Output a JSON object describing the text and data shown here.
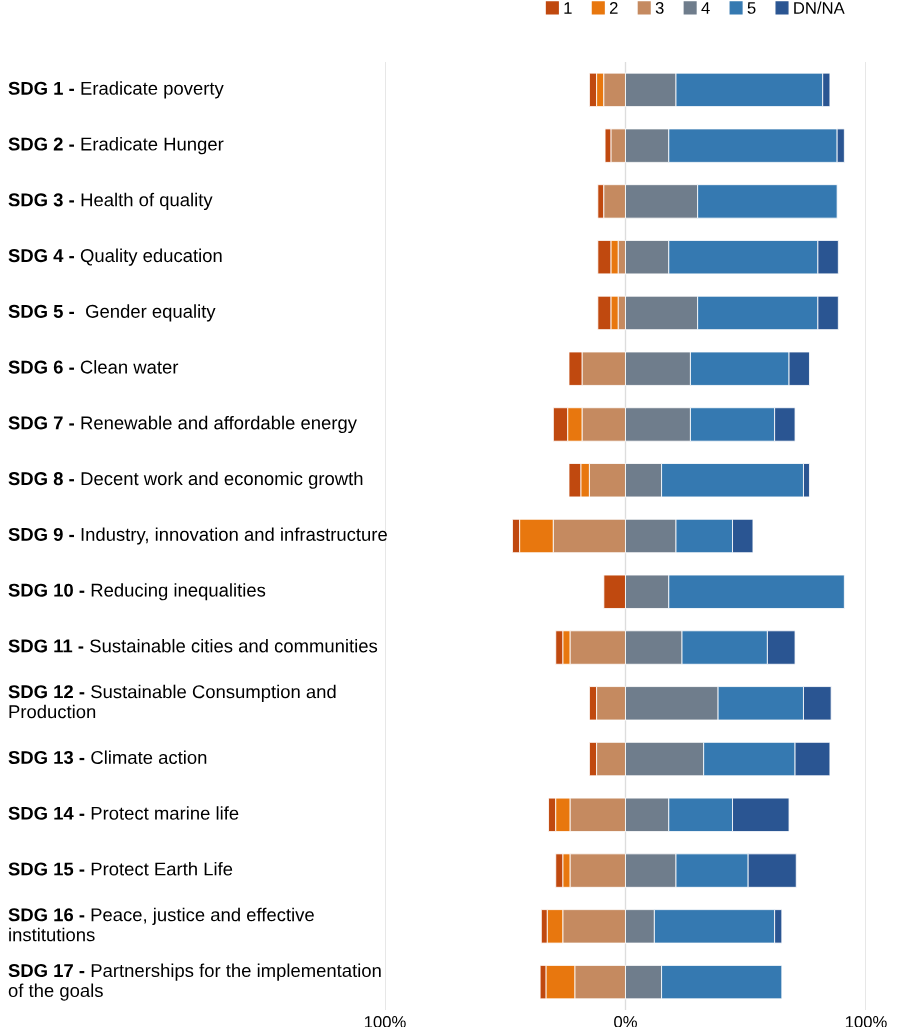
{
  "chart_data": {
    "type": "bar",
    "orientation": "horizontal",
    "stacked": true,
    "categories": [
      "SDG 1 - Eradicate poverty",
      "SDG 2 - Eradicate Hunger",
      "SDG 3 - Health of quality",
      "SDG 4 - Quality education",
      "SDG 5 -  Gender equality",
      "SDG 6 - Clean water",
      "SDG 7 - Renewable and affordable energy",
      "SDG 8 - Decent work and economic growth",
      "SDG 9 - Industry, innovation and infrastructure",
      "SDG 10 - Reducing inequalities",
      "SDG 11 - Sustainable cities and communities",
      "SDG 12 - Sustainable Consumption and Production",
      "SDG 13 - Climate action",
      "SDG 14 - Protect marine life",
      "SDG 15 - Protect Earth Life",
      "SDG 16 - Peace, justice and effective institutions",
      "SDG 17 - Partnerships for the implementation of the goals"
    ],
    "series": [
      {
        "name": "1",
        "color": "#c0490f",
        "values": [
          -3,
          -2.5,
          -2.5,
          -5.5,
          -5.5,
          -5.5,
          -6,
          -5,
          -3,
          -9,
          -3,
          -3,
          -3,
          -3,
          -3,
          -2.5,
          -2.5
        ]
      },
      {
        "name": "2",
        "color": "#e8770e",
        "values": [
          -3,
          0,
          0,
          -3,
          -3,
          0,
          -6,
          -3.5,
          -14,
          0,
          -3,
          0,
          0,
          -6,
          -3,
          -6.5,
          -12
        ]
      },
      {
        "name": "3",
        "color": "#c58a60",
        "values": [
          -9,
          -6,
          -9,
          -3,
          -3,
          -18,
          -18,
          -15,
          -30,
          0,
          -23,
          -12,
          -12,
          -23,
          -23,
          -26,
          -21
        ]
      },
      {
        "name": "4",
        "color": "#6f7d8c",
        "values": [
          21,
          18,
          30,
          18,
          30,
          27,
          27,
          15,
          21,
          18,
          23.5,
          38.5,
          32.5,
          18,
          21,
          12,
          15
        ]
      },
      {
        "name": "5",
        "color": "#3579b1",
        "values": [
          61,
          70,
          58,
          62,
          50,
          41,
          35,
          59,
          23.5,
          73,
          35.5,
          35.5,
          38,
          26.5,
          30,
          50,
          50
        ]
      },
      {
        "name": "DN/NA",
        "color": "#2a5592",
        "values": [
          3,
          3,
          0,
          8.5,
          8.5,
          8.5,
          8.5,
          2.5,
          8.5,
          0,
          11.5,
          11.5,
          14.5,
          23.5,
          20,
          3,
          0
        ]
      }
    ],
    "xlim": [
      -100,
      100
    ],
    "xticks": [
      {
        "value": -100,
        "label": "100%"
      },
      {
        "value": 0,
        "label": "0%"
      },
      {
        "value": 100,
        "label": "100%"
      }
    ],
    "grid": "x",
    "legend": "top right",
    "tick_labels": "x"
  }
}
